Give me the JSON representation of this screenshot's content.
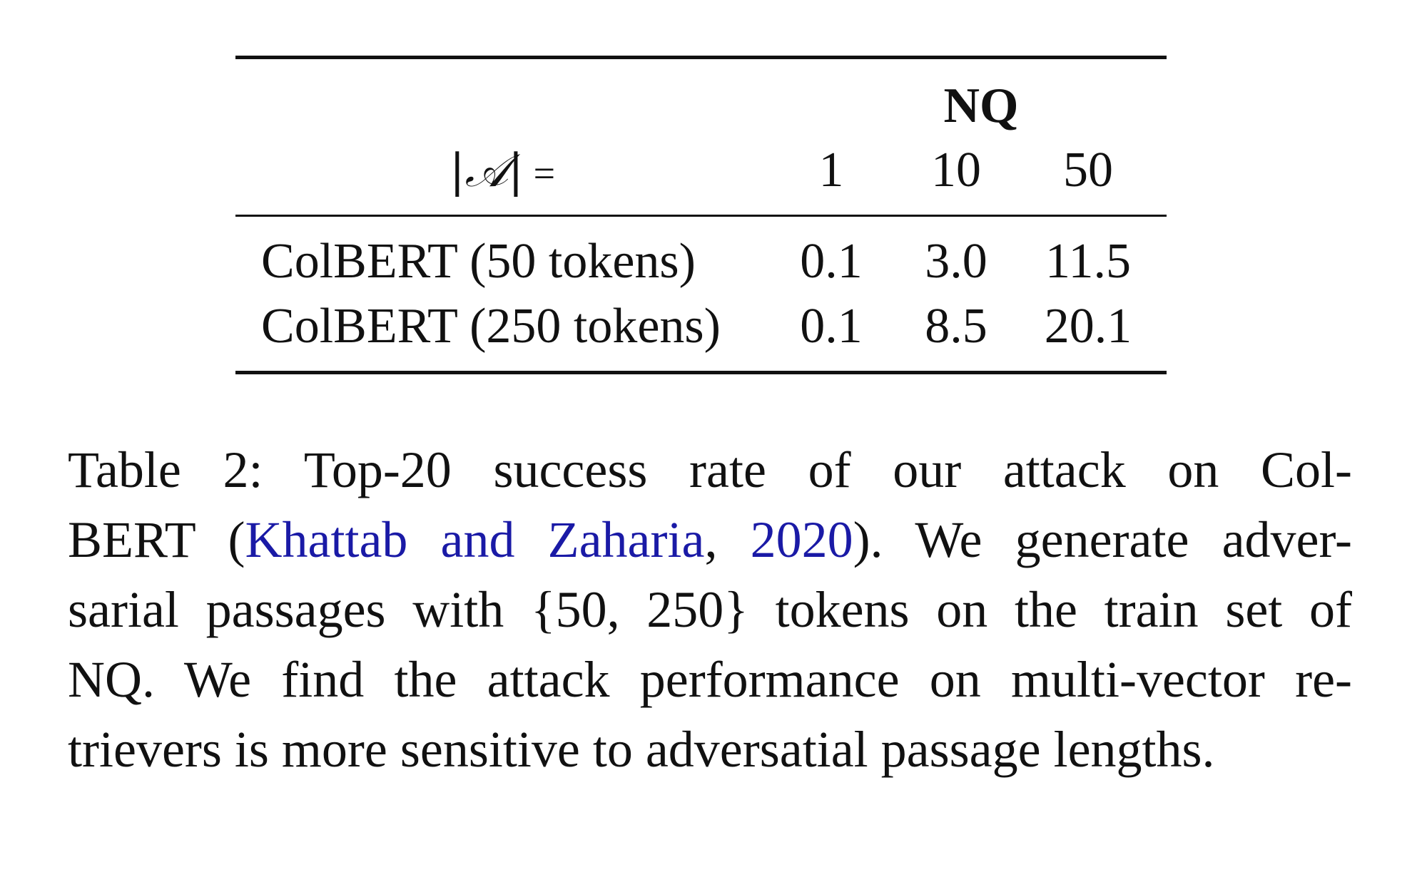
{
  "table": {
    "group_header": "NQ",
    "size_label_symbol": "|𝒜|",
    "size_label_eq": "=",
    "columns": [
      "1",
      "10",
      "50"
    ],
    "rows": [
      {
        "label": "ColBERT (50 tokens)",
        "values": [
          "0.1",
          "3.0",
          "11.5"
        ]
      },
      {
        "label": "ColBERT (250 tokens)",
        "values": [
          "0.1",
          "8.5",
          "20.1"
        ]
      }
    ]
  },
  "caption": {
    "l1": "Table 2:  Top-20 success rate of our attack on Col-",
    "l2_pre": "BERT (",
    "l2_cite": "Khattab and Zaharia",
    "l2_comma": ", ",
    "l2_year": "2020",
    "l2_post": "). We generate adver-",
    "l3": "sarial passages with {50, 250} tokens on the train set of",
    "l4": "NQ. We find the attack performance on multi-vector re-",
    "l5": "trievers is more sensitive to adversatial passage lengths.",
    "cite_color": "#1a1aa6"
  }
}
